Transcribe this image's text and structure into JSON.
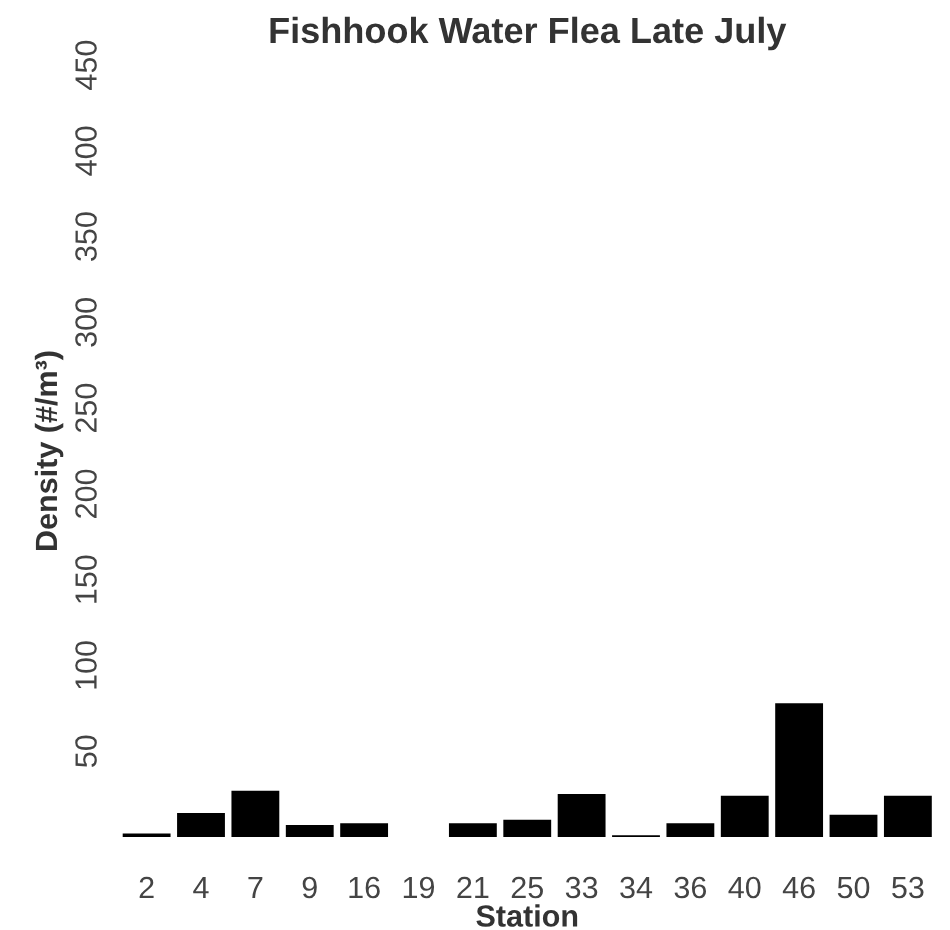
{
  "chart_data": {
    "type": "bar",
    "title": "Fishhook Water Flea Late July",
    "xlabel": "Station",
    "ylabel": "Density (#/m³)",
    "categories": [
      "2",
      "4",
      "7",
      "9",
      "16",
      "19",
      "21",
      "25",
      "33",
      "34",
      "36",
      "40",
      "46",
      "50",
      "53"
    ],
    "values": [
      2,
      14,
      27,
      7,
      8,
      0,
      8,
      10,
      25,
      1,
      8,
      24,
      78,
      13,
      24
    ],
    "color": "#000000",
    "ylim": [
      0,
      450
    ],
    "yticks": [
      50,
      100,
      150,
      200,
      250,
      300,
      350,
      400,
      450
    ],
    "grid": false
  }
}
